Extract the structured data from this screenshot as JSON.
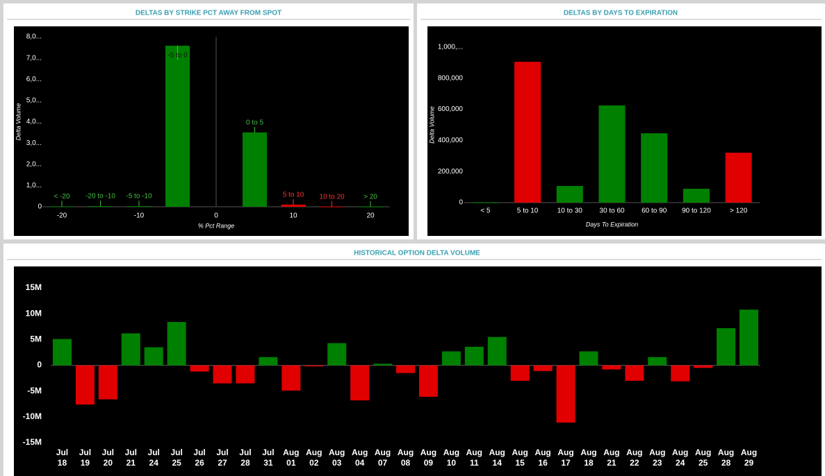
{
  "chart_data": [
    {
      "type": "bar",
      "title": "DELTAS BY STRIKE PCT AWAY FROM SPOT",
      "ylabel": "Delta Volume",
      "xlabel": "% Pct Range",
      "x": [
        -20,
        -15,
        -10,
        -5,
        5,
        10,
        15,
        20
      ],
      "labels": [
        "< -20",
        "-20 to -10",
        "-5 to -10",
        "-5 to 0",
        "0 to 5",
        "5 to 10",
        "10 to 20",
        "> 20"
      ],
      "values": [
        20000,
        30000,
        30000,
        7580000,
        3500000,
        100000,
        10000,
        10000
      ],
      "colors": [
        "#008000",
        "#008000",
        "#008000",
        "#008000",
        "#008000",
        "#e00000",
        "#e00000",
        "#008000"
      ],
      "xlim": [
        -22.5,
        22.5
      ],
      "xticks": [
        -20,
        -10,
        0,
        10,
        20
      ],
      "ylim": [
        0,
        8000000
      ],
      "yticks": [
        0,
        {
          "value": 1000000,
          "label": "1,0..."
        },
        {
          "value": 2000000,
          "label": "2,0..."
        },
        {
          "value": 3000000,
          "label": "3,0..."
        },
        {
          "value": 4000000,
          "label": "4,0..."
        },
        {
          "value": 5000000,
          "label": "5,0..."
        },
        {
          "value": 6000000,
          "label": "6,0..."
        },
        {
          "value": 7000000,
          "label": "7,0..."
        },
        {
          "value": 8000000,
          "label": "8,0..."
        }
      ]
    },
    {
      "type": "bar",
      "title": "DELTAS BY DAYS TO EXPIRATION",
      "ylabel": "Delta Volume",
      "xlabel": "Days To Expiration",
      "categories": [
        "< 5",
        "5 to 10",
        "10 to 30",
        "30 to 60",
        "60 to 90",
        "90 to 120",
        "> 120"
      ],
      "values": [
        1000,
        906000,
        107000,
        625000,
        446000,
        89000,
        321000
      ],
      "colors": [
        "#008000",
        "#e00000",
        "#008000",
        "#008000",
        "#008000",
        "#008000",
        "#e00000"
      ],
      "ylim": [
        0,
        1000000
      ],
      "yticks": [
        0,
        {
          "value": 200000,
          "label": "200,000"
        },
        {
          "value": 400000,
          "label": "400,000"
        },
        {
          "value": 600000,
          "label": "600,000"
        },
        {
          "value": 800000,
          "label": "800,000"
        },
        {
          "value": 1000000,
          "label": "1,000,..."
        }
      ]
    },
    {
      "type": "bar",
      "title": "HISTORICAL OPTION DELTA VOLUME",
      "categories": [
        [
          "Jul",
          "18"
        ],
        [
          "Jul",
          "19"
        ],
        [
          "Jul",
          "20"
        ],
        [
          "Jul",
          "21"
        ],
        [
          "Jul",
          "24"
        ],
        [
          "Jul",
          "25"
        ],
        [
          "Jul",
          "26"
        ],
        [
          "Jul",
          "27"
        ],
        [
          "Jul",
          "28"
        ],
        [
          "Jul",
          "31"
        ],
        [
          "Aug",
          "01"
        ],
        [
          "Aug",
          "02"
        ],
        [
          "Aug",
          "03"
        ],
        [
          "Aug",
          "04"
        ],
        [
          "Aug",
          "07"
        ],
        [
          "Aug",
          "08"
        ],
        [
          "Aug",
          "09"
        ],
        [
          "Aug",
          "10"
        ],
        [
          "Aug",
          "11"
        ],
        [
          "Aug",
          "14"
        ],
        [
          "Aug",
          "15"
        ],
        [
          "Aug",
          "16"
        ],
        [
          "Aug",
          "17"
        ],
        [
          "Aug",
          "18"
        ],
        [
          "Aug",
          "21"
        ],
        [
          "Aug",
          "22"
        ],
        [
          "Aug",
          "23"
        ],
        [
          "Aug",
          "24"
        ],
        [
          "Aug",
          "25"
        ],
        [
          "Aug",
          "28"
        ],
        [
          "Aug",
          "29"
        ]
      ],
      "values": [
        5100000,
        -7600000,
        -6600000,
        6200000,
        3500000,
        8400000,
        -1200000,
        -3500000,
        -3500000,
        1600000,
        -4900000,
        -200000,
        4300000,
        -6800000,
        300000,
        -1500000,
        -6100000,
        2700000,
        3600000,
        5500000,
        -3000000,
        -1100000,
        -11100000,
        2700000,
        -800000,
        -3000000,
        1600000,
        -3100000,
        -500000,
        7200000,
        10800000
      ],
      "colors": [
        "#008000",
        "#e00000",
        "#e00000",
        "#008000",
        "#008000",
        "#008000",
        "#e00000",
        "#e00000",
        "#e00000",
        "#008000",
        "#e00000",
        "#e00000",
        "#008000",
        "#e00000",
        "#008000",
        "#e00000",
        "#e00000",
        "#008000",
        "#008000",
        "#008000",
        "#e00000",
        "#e00000",
        "#e00000",
        "#008000",
        "#e00000",
        "#e00000",
        "#008000",
        "#e00000",
        "#e00000",
        "#008000",
        "#008000"
      ],
      "ylim": [
        -15000000,
        15000000
      ],
      "yticks": [
        {
          "value": -15000000,
          "label": "-15M"
        },
        {
          "value": -10000000,
          "label": "-10M"
        },
        {
          "value": -5000000,
          "label": "-5M"
        },
        0,
        {
          "value": 5000000,
          "label": "5M"
        },
        {
          "value": 10000000,
          "label": "10M"
        },
        {
          "value": 15000000,
          "label": "15M"
        }
      ]
    }
  ]
}
